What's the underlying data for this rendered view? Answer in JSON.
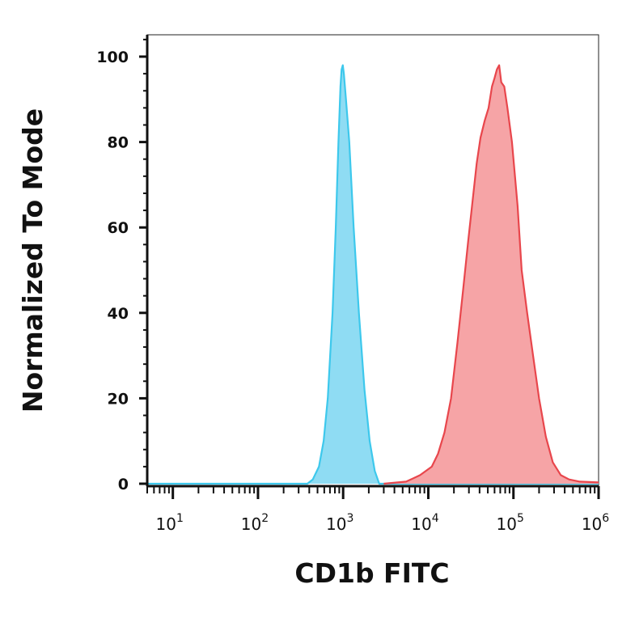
{
  "chart_data": {
    "type": "area",
    "xlabel": "CD1b FITC",
    "ylabel": "Normalized To Mode",
    "x_scale": "log",
    "xlim": [
      5,
      1000000
    ],
    "ylim": [
      0,
      105
    ],
    "x_ticks": [
      {
        "base": "10",
        "exp": "1",
        "value": 10
      },
      {
        "base": "10",
        "exp": "2",
        "value": 100
      },
      {
        "base": "10",
        "exp": "3",
        "value": 1000
      },
      {
        "base": "10",
        "exp": "4",
        "value": 10000
      },
      {
        "base": "10",
        "exp": "5",
        "value": 100000
      },
      {
        "base": "10",
        "exp": "6",
        "value": 1000000
      }
    ],
    "y_ticks": [
      0,
      20,
      40,
      60,
      80,
      100
    ],
    "grid": false,
    "legend": "none",
    "series": [
      {
        "color": "#3dc8ec",
        "fill": "#8fdcf3",
        "points": [
          [
            5,
            0
          ],
          [
            380,
            0
          ],
          [
            440,
            1
          ],
          [
            520,
            4
          ],
          [
            590,
            10
          ],
          [
            660,
            20
          ],
          [
            750,
            40
          ],
          [
            820,
            60
          ],
          [
            880,
            80
          ],
          [
            930,
            93
          ],
          [
            960,
            97
          ],
          [
            990,
            98
          ],
          [
            1020,
            96
          ],
          [
            1080,
            90
          ],
          [
            1180,
            80
          ],
          [
            1330,
            60
          ],
          [
            1530,
            40
          ],
          [
            1780,
            22
          ],
          [
            2050,
            10
          ],
          [
            2350,
            3
          ],
          [
            2650,
            0
          ],
          [
            1000000,
            0
          ]
        ]
      },
      {
        "color": "#e8464c",
        "fill": "#f6a4a6",
        "points": [
          [
            3000,
            0
          ],
          [
            5500,
            0.5
          ],
          [
            8000,
            2
          ],
          [
            11000,
            4
          ],
          [
            13000,
            7
          ],
          [
            15500,
            12
          ],
          [
            18500,
            20
          ],
          [
            22000,
            33
          ],
          [
            25500,
            45
          ],
          [
            29500,
            57
          ],
          [
            33000,
            66
          ],
          [
            37000,
            75
          ],
          [
            41000,
            81
          ],
          [
            46000,
            85
          ],
          [
            51000,
            88
          ],
          [
            56000,
            93
          ],
          [
            60000,
            95
          ],
          [
            64000,
            97
          ],
          [
            68000,
            98
          ],
          [
            72000,
            94
          ],
          [
            78000,
            93
          ],
          [
            85000,
            88
          ],
          [
            96000,
            80
          ],
          [
            112000,
            65
          ],
          [
            125000,
            50
          ],
          [
            145000,
            40
          ],
          [
            170000,
            30
          ],
          [
            200000,
            20
          ],
          [
            240000,
            11
          ],
          [
            290000,
            5
          ],
          [
            360000,
            2
          ],
          [
            450000,
            1
          ],
          [
            600000,
            0.5
          ],
          [
            1000000,
            0.3
          ]
        ]
      }
    ]
  }
}
